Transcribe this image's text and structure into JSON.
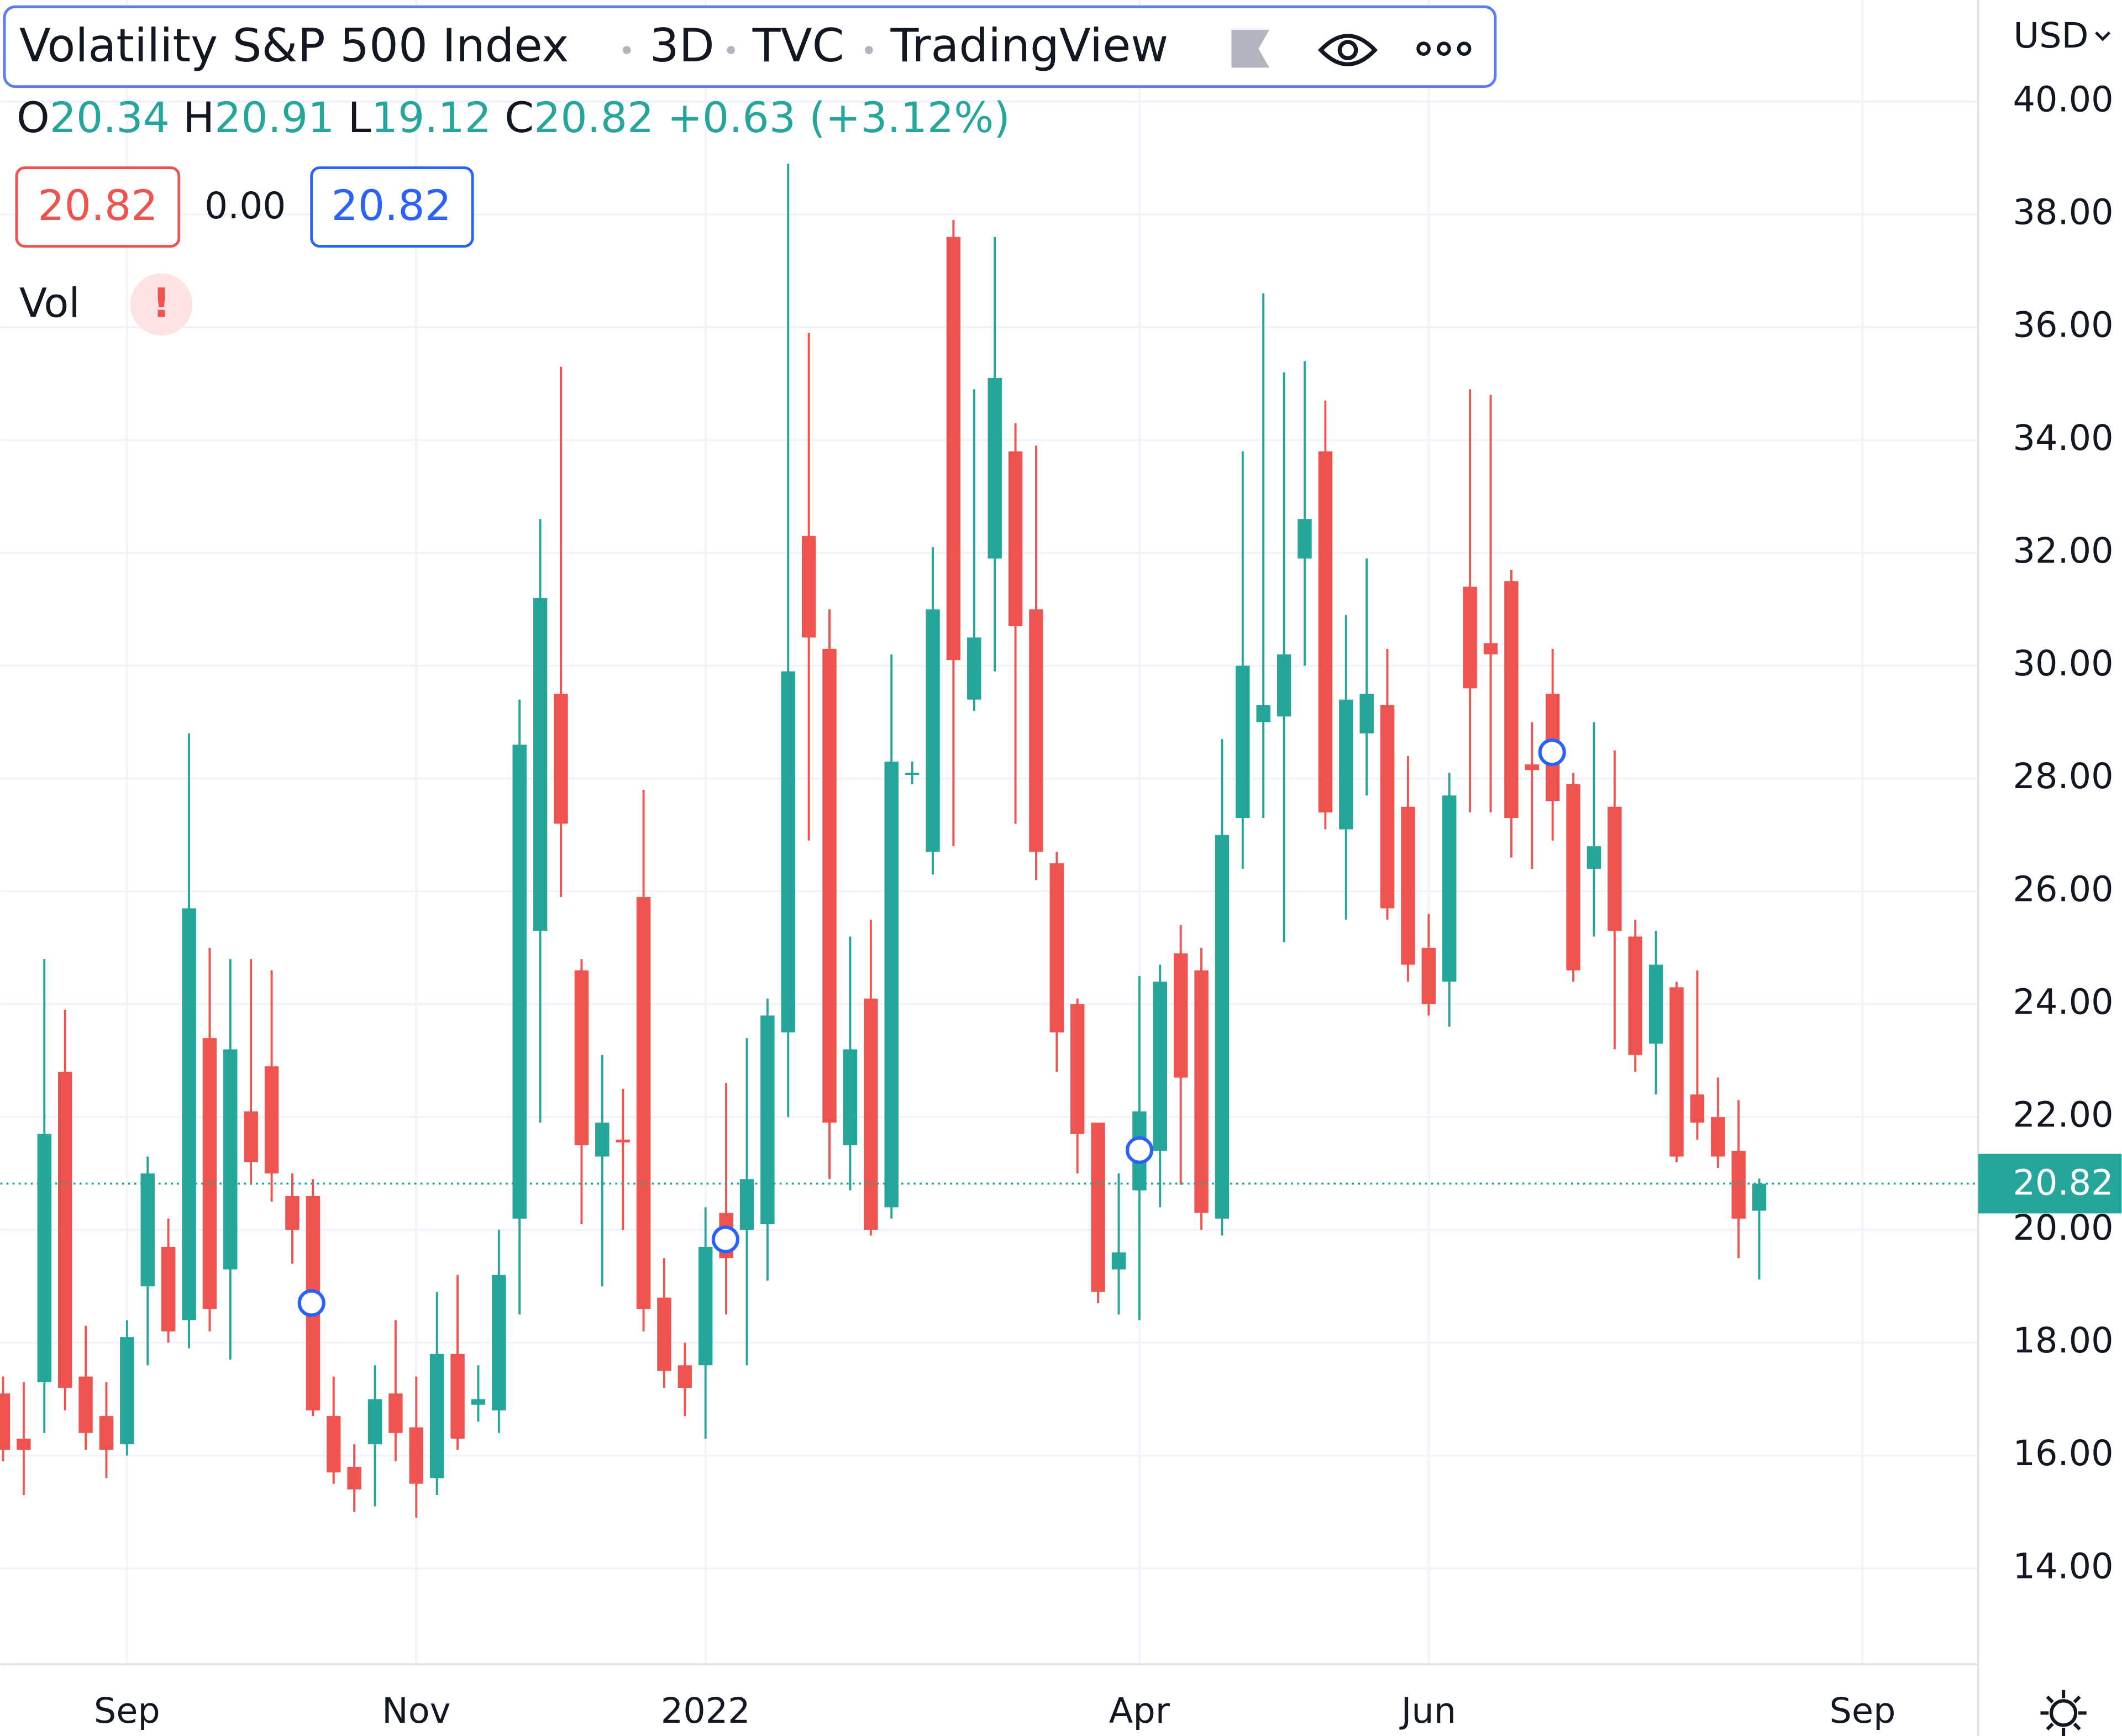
{
  "chart_data": {
    "type": "candlestick",
    "title": "Volatility S&P 500 Index",
    "interval": "3D",
    "exchange": "TVC",
    "source": "TradingView",
    "ohlc_legend": [
      {
        "label": "O",
        "value": 20.34
      },
      {
        "label": "H",
        "value": 20.91
      },
      {
        "label": "L",
        "value": 19.12
      },
      {
        "label": "C",
        "value": 20.82
      }
    ],
    "change": "+0.63 (+3.12%)",
    "price_boxes": [
      20.82,
      "0.00",
      20.82
    ],
    "volume_label": "Vol",
    "currency": "USD",
    "last_price": 20.82,
    "up_color": "#26a69a",
    "down_color": "#ef5350",
    "grid": true,
    "open": [
      17.1,
      16.3,
      17.3,
      22.8,
      17.4,
      16.7,
      16.2,
      19.0,
      19.7,
      18.4,
      23.4,
      19.3,
      22.1,
      22.9,
      20.6,
      20.6,
      16.7,
      15.8,
      16.2,
      17.1,
      16.5,
      15.6,
      17.8,
      16.9,
      16.8,
      20.2,
      25.3,
      29.5,
      24.6,
      21.3,
      21.6,
      25.9,
      18.8,
      17.6,
      17.6,
      20.3,
      20.0,
      20.1,
      23.5,
      32.3,
      30.3,
      21.5,
      24.1,
      20.4,
      28.1,
      26.7,
      37.6,
      29.4,
      31.9,
      33.8,
      31.0,
      26.5,
      24.0,
      21.9,
      19.3,
      20.7,
      21.4,
      24.9,
      24.6,
      20.2,
      27.3,
      29.0,
      29.1,
      31.9,
      33.8,
      27.1,
      28.8,
      29.3,
      27.5,
      25.0,
      24.4,
      31.4,
      30.4,
      31.5,
      28.25,
      29.5,
      27.9,
      26.4,
      27.5,
      25.2,
      23.3,
      24.3,
      22.4,
      22.0,
      21.4,
      20.34
    ],
    "high": [
      17.4,
      17.3,
      24.8,
      23.9,
      18.3,
      17.3,
      18.4,
      21.3,
      20.2,
      28.8,
      25.0,
      24.8,
      24.8,
      24.6,
      21.0,
      20.9,
      17.4,
      16.2,
      17.6,
      18.4,
      17.4,
      18.9,
      19.2,
      17.6,
      20.0,
      29.4,
      32.6,
      35.3,
      24.8,
      23.1,
      22.5,
      27.8,
      19.5,
      18.0,
      20.4,
      22.6,
      23.4,
      24.1,
      38.9,
      35.9,
      31.0,
      25.2,
      25.5,
      30.2,
      28.3,
      32.1,
      37.9,
      34.9,
      37.6,
      34.3,
      33.9,
      26.7,
      24.1,
      21.9,
      21.0,
      24.5,
      24.7,
      25.4,
      25.0,
      28.7,
      33.8,
      36.6,
      35.2,
      35.4,
      34.7,
      30.9,
      31.9,
      30.3,
      28.4,
      25.6,
      28.1,
      34.9,
      34.8,
      31.7,
      29.0,
      30.3,
      28.1,
      29.0,
      28.5,
      25.5,
      25.3,
      24.4,
      24.6,
      22.7,
      22.3,
      20.91
    ],
    "low": [
      15.9,
      15.3,
      16.4,
      16.8,
      16.1,
      15.6,
      16.0,
      17.6,
      18.0,
      17.9,
      18.2,
      17.7,
      20.8,
      20.5,
      19.4,
      16.7,
      15.5,
      15.0,
      15.1,
      15.9,
      14.9,
      15.3,
      16.1,
      16.6,
      16.4,
      18.5,
      21.9,
      25.9,
      20.1,
      19.0,
      20.0,
      18.2,
      17.2,
      16.7,
      16.3,
      18.5,
      17.6,
      19.1,
      22.0,
      26.9,
      20.9,
      20.7,
      19.9,
      20.2,
      27.9,
      26.3,
      26.8,
      29.2,
      29.9,
      27.2,
      26.2,
      22.8,
      21.0,
      18.7,
      18.5,
      18.4,
      20.4,
      20.8,
      20.0,
      19.9,
      26.4,
      27.3,
      25.1,
      30.0,
      27.1,
      25.5,
      27.7,
      25.5,
      24.4,
      23.8,
      23.6,
      27.4,
      27.4,
      26.6,
      26.4,
      26.9,
      24.4,
      25.2,
      23.2,
      22.8,
      22.4,
      21.2,
      21.6,
      21.1,
      19.5,
      19.12
    ],
    "close": [
      16.1,
      16.1,
      21.7,
      17.2,
      16.4,
      16.1,
      18.1,
      21.0,
      18.2,
      25.7,
      18.6,
      23.2,
      21.2,
      21.0,
      20.0,
      16.8,
      15.7,
      15.4,
      17.0,
      16.4,
      15.5,
      17.8,
      16.3,
      17.0,
      19.2,
      28.6,
      31.2,
      27.2,
      21.5,
      21.9,
      21.55,
      18.6,
      17.5,
      17.2,
      19.7,
      19.5,
      20.9,
      23.8,
      29.9,
      30.5,
      21.9,
      23.2,
      20.0,
      28.3,
      28.1,
      31.0,
      30.1,
      30.5,
      35.1,
      30.7,
      26.7,
      23.5,
      21.7,
      18.9,
      19.6,
      22.1,
      24.4,
      22.7,
      20.3,
      27.0,
      30.0,
      29.3,
      30.2,
      32.6,
      27.4,
      29.4,
      29.5,
      25.7,
      24.7,
      24.0,
      27.7,
      29.6,
      30.2,
      27.3,
      28.15,
      27.6,
      24.6,
      26.8,
      25.3,
      23.1,
      24.7,
      21.3,
      21.9,
      21.3,
      20.2,
      20.82
    ],
    "xlim": [
      -0.13,
      95.6
    ],
    "xticks": [
      {
        "value": 6,
        "label": "Sep"
      },
      {
        "value": 20,
        "label": "Nov"
      },
      {
        "value": 34,
        "label": "2022"
      },
      {
        "value": 55,
        "label": "Apr"
      },
      {
        "value": 69,
        "label": "Jun"
      },
      {
        "value": 90,
        "label": "Sep"
      }
    ],
    "ylim": [
      12.3,
      41.8
    ],
    "yticks": [
      {
        "value": 14,
        "label": "14.00"
      },
      {
        "value": 16,
        "label": "16.00"
      },
      {
        "value": 18,
        "label": "18.00"
      },
      {
        "value": 20,
        "label": "20.00"
      },
      {
        "value": 22,
        "label": "22.00"
      },
      {
        "value": 24,
        "label": "24.00"
      },
      {
        "value": 26,
        "label": "26.00"
      },
      {
        "value": 28,
        "label": "28.00"
      },
      {
        "value": 30,
        "label": "30.00"
      },
      {
        "value": 32,
        "label": "32.00"
      },
      {
        "value": 34,
        "label": "34.00"
      },
      {
        "value": 36,
        "label": "36.00"
      },
      {
        "value": 38,
        "label": "38.00"
      },
      {
        "value": 40,
        "label": "40.00"
      }
    ]
  }
}
